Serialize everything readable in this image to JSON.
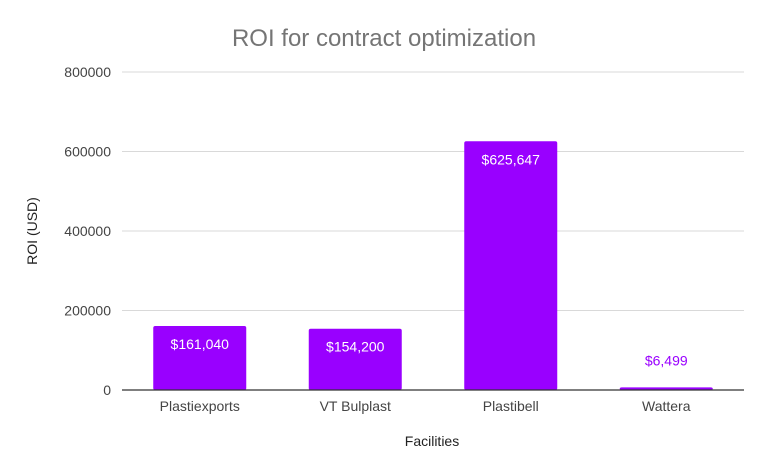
{
  "chart_data": {
    "type": "bar",
    "title": "ROI for contract optimization",
    "xlabel": "Facilities",
    "ylabel": "ROI (USD)",
    "categories": [
      "Plastiexports",
      "VT Bulplast",
      "Plastibell",
      "Wattera"
    ],
    "values": [
      161040,
      154200,
      625647,
      6499
    ],
    "data_labels": [
      "$161,040",
      "$154,200",
      "$625,647",
      "$6,499"
    ],
    "ylim": [
      0,
      800000
    ],
    "yticks": [
      0,
      200000,
      400000,
      600000,
      800000
    ],
    "grid": true,
    "legend": "none",
    "colors": {
      "bar": "#9900ff",
      "label_inside": "#ffffff",
      "label_outside": "#9900ff"
    }
  }
}
